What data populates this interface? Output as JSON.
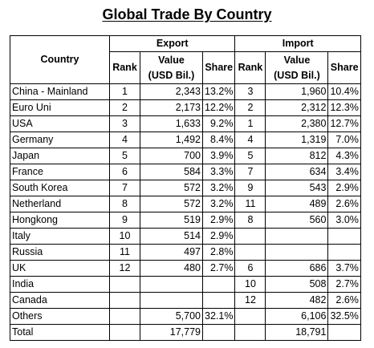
{
  "title": "Global Trade By Country",
  "headers": {
    "country": "Country",
    "export_group": "Export",
    "import_group": "Import",
    "rank": "Rank",
    "value_line1": "Value",
    "value_line2": "(USD Bil.)",
    "share": "Share"
  },
  "rows": [
    {
      "country": "China - Mainland",
      "ex_rank": "1",
      "ex_value": "2,343",
      "ex_share": "13.2%",
      "im_rank": "3",
      "im_value": "1,960",
      "im_share": "10.4%"
    },
    {
      "country": "Euro Uni",
      "ex_rank": "2",
      "ex_value": "2,173",
      "ex_share": "12.2%",
      "im_rank": "2",
      "im_value": "2,312",
      "im_share": "12.3%"
    },
    {
      "country": "USA",
      "ex_rank": "3",
      "ex_value": "1,633",
      "ex_share": "9.2%",
      "im_rank": "1",
      "im_value": "2,380",
      "im_share": "12.7%"
    },
    {
      "country": "Germany",
      "ex_rank": "4",
      "ex_value": "1,492",
      "ex_share": "8.4%",
      "im_rank": "4",
      "im_value": "1,319",
      "im_share": "7.0%"
    },
    {
      "country": "Japan",
      "ex_rank": "5",
      "ex_value": "700",
      "ex_share": "3.9%",
      "im_rank": "5",
      "im_value": "812",
      "im_share": "4.3%"
    },
    {
      "country": "France",
      "ex_rank": "6",
      "ex_value": "584",
      "ex_share": "3.3%",
      "im_rank": "7",
      "im_value": "634",
      "im_share": "3.4%"
    },
    {
      "country": "South Korea",
      "ex_rank": "7",
      "ex_value": "572",
      "ex_share": "3.2%",
      "im_rank": "9",
      "im_value": "543",
      "im_share": "2.9%"
    },
    {
      "country": "Netherland",
      "ex_rank": "8",
      "ex_value": "572",
      "ex_share": "3.2%",
      "im_rank": "11",
      "im_value": "489",
      "im_share": "2.6%"
    },
    {
      "country": "Hongkong",
      "ex_rank": "9",
      "ex_value": "519",
      "ex_share": "2.9%",
      "im_rank": "8",
      "im_value": "560",
      "im_share": "3.0%"
    },
    {
      "country": "Italy",
      "ex_rank": "10",
      "ex_value": "514",
      "ex_share": "2.9%",
      "im_rank": "",
      "im_value": "",
      "im_share": ""
    },
    {
      "country": "Russia",
      "ex_rank": "11",
      "ex_value": "497",
      "ex_share": "2.8%",
      "im_rank": "",
      "im_value": "",
      "im_share": ""
    },
    {
      "country": "UK",
      "ex_rank": "12",
      "ex_value": "480",
      "ex_share": "2.7%",
      "im_rank": "6",
      "im_value": "686",
      "im_share": "3.7%"
    },
    {
      "country": "India",
      "ex_rank": "",
      "ex_value": "",
      "ex_share": "",
      "im_rank": "10",
      "im_value": "508",
      "im_share": "2.7%"
    },
    {
      "country": "Canada",
      "ex_rank": "",
      "ex_value": "",
      "ex_share": "",
      "im_rank": "12",
      "im_value": "482",
      "im_share": "2.6%"
    },
    {
      "country": "Others",
      "ex_rank": "",
      "ex_value": "5,700",
      "ex_share": "32.1%",
      "im_rank": "",
      "im_value": "6,106",
      "im_share": "32.5%"
    },
    {
      "country": "Total",
      "ex_rank": "",
      "ex_value": "17,779",
      "ex_share": "",
      "im_rank": "",
      "im_value": "18,791",
      "im_share": ""
    }
  ]
}
